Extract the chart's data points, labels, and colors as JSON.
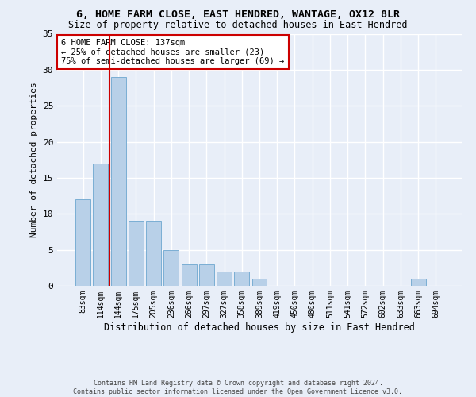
{
  "title_line1": "6, HOME FARM CLOSE, EAST HENDRED, WANTAGE, OX12 8LR",
  "title_line2": "Size of property relative to detached houses in East Hendred",
  "xlabel": "Distribution of detached houses by size in East Hendred",
  "ylabel": "Number of detached properties",
  "categories": [
    "83sqm",
    "114sqm",
    "144sqm",
    "175sqm",
    "205sqm",
    "236sqm",
    "266sqm",
    "297sqm",
    "327sqm",
    "358sqm",
    "389sqm",
    "419sqm",
    "450sqm",
    "480sqm",
    "511sqm",
    "541sqm",
    "572sqm",
    "602sqm",
    "633sqm",
    "663sqm",
    "694sqm"
  ],
  "values": [
    12,
    17,
    29,
    9,
    9,
    5,
    3,
    3,
    2,
    2,
    1,
    0,
    0,
    0,
    0,
    0,
    0,
    0,
    0,
    1,
    0
  ],
  "bar_color": "#b8d0e8",
  "bar_edge_color": "#7aaed4",
  "vline_color": "#cc0000",
  "annotation_text": "6 HOME FARM CLOSE: 137sqm\n← 25% of detached houses are smaller (23)\n75% of semi-detached houses are larger (69) →",
  "annotation_box_color": "#ffffff",
  "annotation_box_edge": "#cc0000",
  "ylim": [
    0,
    35
  ],
  "yticks": [
    0,
    5,
    10,
    15,
    20,
    25,
    30,
    35
  ],
  "footer_line1": "Contains HM Land Registry data © Crown copyright and database right 2024.",
  "footer_line2": "Contains public sector information licensed under the Open Government Licence v3.0.",
  "bg_color": "#e8eef8",
  "grid_color": "#ffffff"
}
